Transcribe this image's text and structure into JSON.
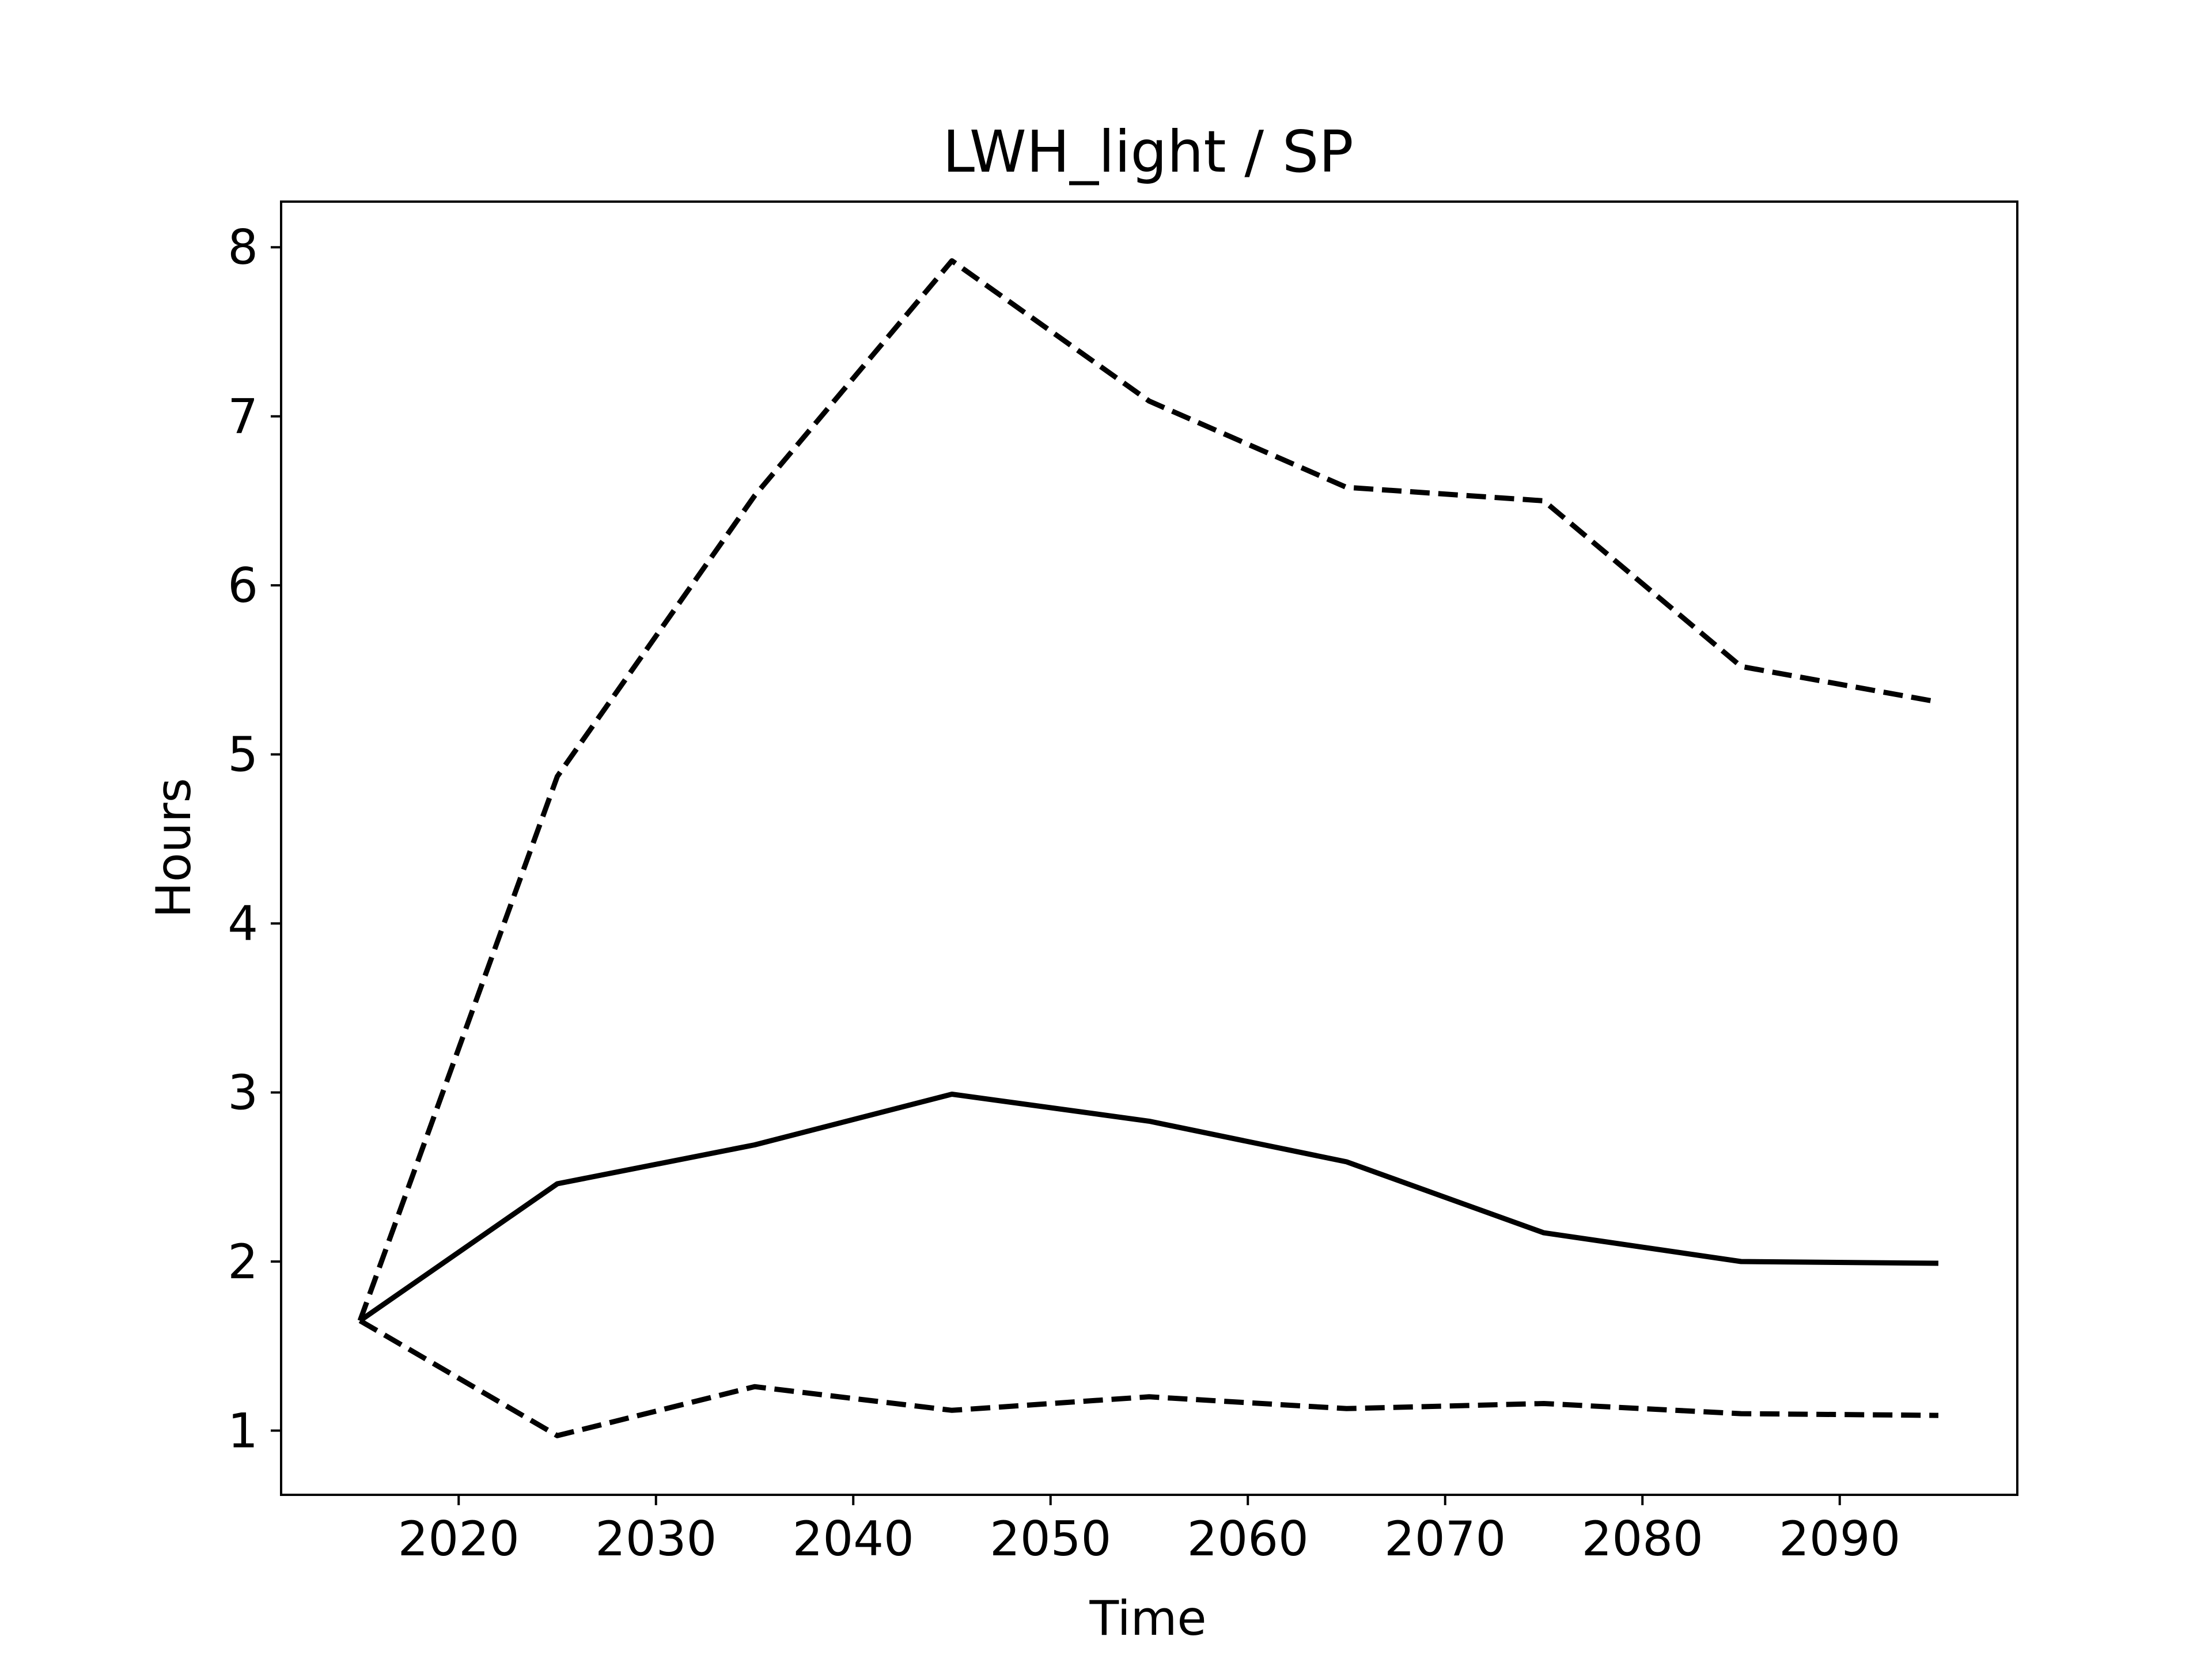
{
  "chart_data": {
    "type": "line",
    "title": "LWH_light / SP",
    "xlabel": "Time",
    "ylabel": "Hours",
    "xlim": [
      2011,
      2099
    ],
    "ylim": [
      0.62,
      8.27
    ],
    "xticks": [
      2020,
      2030,
      2040,
      2050,
      2060,
      2070,
      2080,
      2090
    ],
    "yticks": [
      1,
      2,
      3,
      4,
      5,
      6,
      7,
      8
    ],
    "grid": false,
    "legend": "none",
    "series": [
      {
        "style": "solid",
        "color": "#000000",
        "x": [
          2015,
          2025,
          2035,
          2045,
          2055,
          2065,
          2075,
          2085,
          2095
        ],
        "y": [
          1.65,
          2.46,
          2.69,
          2.99,
          2.83,
          2.59,
          2.17,
          2.0,
          1.99
        ]
      },
      {
        "style": "dashed",
        "color": "#000000",
        "x": [
          2015,
          2025,
          2035,
          2045,
          2055,
          2065,
          2075,
          2085,
          2095
        ],
        "y": [
          1.65,
          4.87,
          6.53,
          7.92,
          7.09,
          6.58,
          6.5,
          5.52,
          5.31
        ]
      },
      {
        "style": "dashed",
        "color": "#000000",
        "x": [
          2015,
          2025,
          2035,
          2045,
          2055,
          2065,
          2075,
          2085,
          2095
        ],
        "y": [
          1.65,
          0.97,
          1.26,
          1.12,
          1.2,
          1.13,
          1.16,
          1.1,
          1.09
        ]
      }
    ]
  }
}
